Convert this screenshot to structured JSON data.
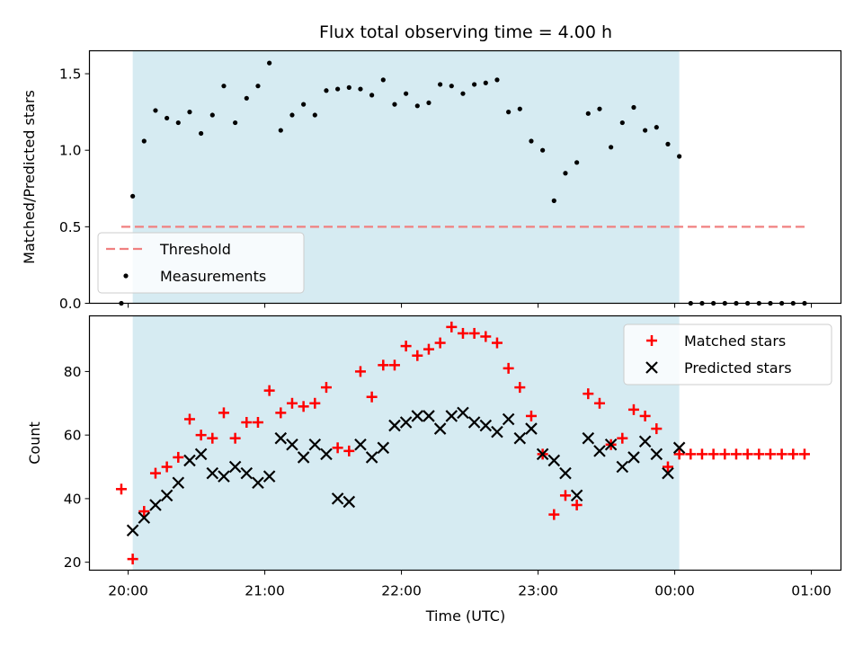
{
  "chart_data": [
    {
      "type": "scatter",
      "title": "Flux total observing time = 4.00 h",
      "xlabel": "",
      "ylabel": "Matched/Predicted stars",
      "xlim": [
        "19:43",
        "01:13"
      ],
      "ylim": [
        0,
        1.65
      ],
      "yticks": [
        0.0,
        0.5,
        1.0,
        1.5
      ],
      "yticklabels": [
        "0.0",
        "0.5",
        "1.0",
        "1.5"
      ],
      "shaded_range": [
        "20:02",
        "00:02"
      ],
      "threshold": {
        "name": "Threshold",
        "value": 0.5,
        "x_range": [
          "19:57",
          "00:57"
        ]
      },
      "legend": {
        "placement": "lower-left",
        "entries": [
          "Threshold",
          "Measurements"
        ]
      },
      "series": [
        {
          "name": "Measurements",
          "x": [
            "19:57",
            "20:02",
            "20:07",
            "20:12",
            "20:17",
            "20:22",
            "20:27",
            "20:32",
            "20:37",
            "20:42",
            "20:47",
            "20:52",
            "20:57",
            "21:02",
            "21:07",
            "21:12",
            "21:17",
            "21:22",
            "21:27",
            "21:32",
            "21:37",
            "21:42",
            "21:47",
            "21:52",
            "21:57",
            "22:02",
            "22:07",
            "22:12",
            "22:17",
            "22:22",
            "22:27",
            "22:32",
            "22:37",
            "22:42",
            "22:47",
            "22:52",
            "22:57",
            "23:02",
            "23:07",
            "23:12",
            "23:17",
            "23:22",
            "23:27",
            "23:32",
            "23:37",
            "23:42",
            "23:47",
            "23:52",
            "23:57",
            "00:02",
            "00:07",
            "00:12",
            "00:17",
            "00:22",
            "00:27",
            "00:32",
            "00:37",
            "00:42",
            "00:47",
            "00:52",
            "00:57"
          ],
          "y": [
            0.0,
            0.7,
            1.06,
            1.26,
            1.21,
            1.18,
            1.25,
            1.11,
            1.23,
            1.42,
            1.18,
            1.34,
            1.42,
            1.57,
            1.13,
            1.23,
            1.3,
            1.23,
            1.39,
            1.4,
            1.41,
            1.4,
            1.36,
            1.46,
            1.3,
            1.37,
            1.29,
            1.31,
            1.43,
            1.42,
            1.37,
            1.43,
            1.44,
            1.46,
            1.25,
            1.27,
            1.06,
            1.0,
            0.67,
            0.85,
            0.92,
            1.24,
            1.27,
            1.02,
            1.18,
            1.28,
            1.13,
            1.15,
            1.04,
            0.96,
            0.0,
            0.0,
            0.0,
            0.0,
            0.0,
            0.0,
            0.0,
            0.0,
            0.0,
            0.0,
            0.0
          ]
        }
      ]
    },
    {
      "type": "scatter",
      "title": "",
      "xlabel": "Time (UTC)",
      "ylabel": "Count",
      "xlim": [
        "19:43",
        "01:13"
      ],
      "ylim": [
        17.5,
        97.5
      ],
      "yticks": [
        20,
        40,
        60,
        80
      ],
      "yticklabels": [
        "20",
        "40",
        "60",
        "80"
      ],
      "xticks": [
        "20:00",
        "21:00",
        "22:00",
        "23:00",
        "00:00",
        "01:00"
      ],
      "shaded_range": [
        "20:02",
        "00:02"
      ],
      "legend": {
        "placement": "top-right",
        "entries": [
          "Matched stars",
          "Predicted stars"
        ]
      },
      "series": [
        {
          "name": "Matched stars",
          "color": "#ff0000",
          "x": [
            "19:57",
            "20:02",
            "20:07",
            "20:12",
            "20:17",
            "20:22",
            "20:27",
            "20:32",
            "20:37",
            "20:42",
            "20:47",
            "20:52",
            "20:57",
            "21:02",
            "21:07",
            "21:12",
            "21:17",
            "21:22",
            "21:27",
            "21:32",
            "21:37",
            "21:42",
            "21:47",
            "21:52",
            "21:57",
            "22:02",
            "22:07",
            "22:12",
            "22:17",
            "22:22",
            "22:27",
            "22:32",
            "22:37",
            "22:42",
            "22:47",
            "22:52",
            "22:57",
            "23:02",
            "23:07",
            "23:12",
            "23:17",
            "23:22",
            "23:27",
            "23:32",
            "23:37",
            "23:42",
            "23:47",
            "23:52",
            "23:57",
            "00:02",
            "00:07",
            "00:12",
            "00:17",
            "00:22",
            "00:27",
            "00:32",
            "00:37",
            "00:42",
            "00:47",
            "00:52",
            "00:57"
          ],
          "y": [
            43,
            21,
            36,
            48,
            50,
            53,
            65,
            60,
            59,
            67,
            59,
            64,
            64,
            74,
            67,
            70,
            69,
            70,
            75,
            56,
            55,
            80,
            72,
            82,
            82,
            88,
            85,
            87,
            89,
            94,
            92,
            92,
            91,
            89,
            81,
            75,
            66,
            54,
            35,
            41,
            38,
            73,
            70,
            57,
            59,
            68,
            66,
            62,
            50,
            54,
            54,
            54,
            54,
            54,
            54,
            54,
            54,
            54,
            54,
            54,
            54
          ]
        },
        {
          "name": "Predicted stars",
          "color": "#000000",
          "x": [
            "20:02",
            "20:07",
            "20:12",
            "20:17",
            "20:22",
            "20:27",
            "20:32",
            "20:37",
            "20:42",
            "20:47",
            "20:52",
            "20:57",
            "21:02",
            "21:07",
            "21:12",
            "21:17",
            "21:22",
            "21:27",
            "21:32",
            "21:37",
            "21:42",
            "21:47",
            "21:52",
            "21:57",
            "22:02",
            "22:07",
            "22:12",
            "22:17",
            "22:22",
            "22:27",
            "22:32",
            "22:37",
            "22:42",
            "22:47",
            "22:52",
            "22:57",
            "23:02",
            "23:07",
            "23:12",
            "23:17",
            "23:22",
            "23:27",
            "23:32",
            "23:37",
            "23:42",
            "23:47",
            "23:52",
            "23:57",
            "00:02"
          ],
          "y": [
            30,
            34,
            38,
            41,
            45,
            52,
            54,
            48,
            47,
            50,
            48,
            45,
            47,
            59,
            57,
            53,
            57,
            54,
            40,
            39,
            57,
            53,
            56,
            63,
            64,
            66,
            66,
            62,
            66,
            67,
            64,
            63,
            61,
            65,
            59,
            62,
            54,
            52,
            48,
            41,
            59,
            55,
            57,
            50,
            53,
            58,
            54,
            48,
            56
          ]
        }
      ]
    }
  ]
}
